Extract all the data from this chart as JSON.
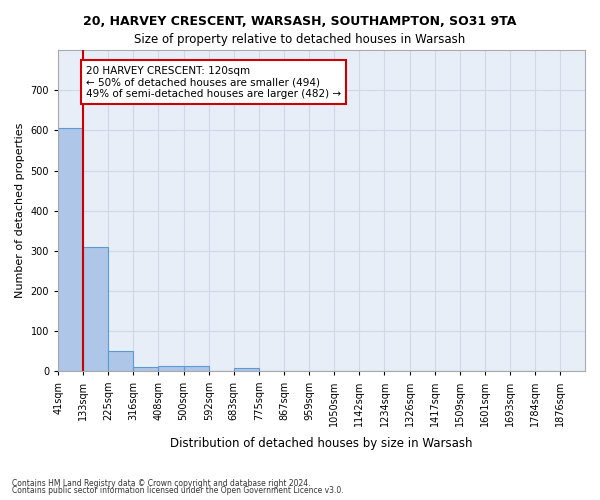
{
  "title1": "20, HARVEY CRESCENT, WARSASH, SOUTHAMPTON, SO31 9TA",
  "title2": "Size of property relative to detached houses in Warsash",
  "xlabel": "Distribution of detached houses by size in Warsash",
  "ylabel": "Number of detached properties",
  "bin_labels": [
    "41sqm",
    "133sqm",
    "225sqm",
    "316sqm",
    "408sqm",
    "500sqm",
    "592sqm",
    "683sqm",
    "775sqm",
    "867sqm",
    "959sqm",
    "1050sqm",
    "1142sqm",
    "1234sqm",
    "1326sqm",
    "1417sqm",
    "1509sqm",
    "1601sqm",
    "1693sqm",
    "1784sqm",
    "1876sqm"
  ],
  "bin_edges": [
    41,
    133,
    225,
    316,
    408,
    500,
    592,
    683,
    775,
    867,
    959,
    1050,
    1142,
    1234,
    1326,
    1417,
    1509,
    1601,
    1693,
    1784,
    1876
  ],
  "bar_heights": [
    607,
    310,
    50,
    12,
    13,
    13,
    0,
    8,
    0,
    0,
    0,
    0,
    0,
    0,
    0,
    0,
    0,
    0,
    0,
    0
  ],
  "bar_color": "#aec6e8",
  "bar_edge_color": "#5b9bd5",
  "property_size": 120,
  "property_bin_index": 0,
  "annotation_text": "20 HARVEY CRESCENT: 120sqm\n← 50% of detached houses are smaller (494)\n49% of semi-detached houses are larger (482) →",
  "annotation_box_color": "#ffffff",
  "annotation_box_edge_color": "#cc0000",
  "red_line_color": "#cc0000",
  "ylim": [
    0,
    800
  ],
  "yticks": [
    0,
    100,
    200,
    300,
    400,
    500,
    600,
    700,
    800
  ],
  "grid_color": "#d0d8e8",
  "background_color": "#e8eef8",
  "footnote1": "Contains HM Land Registry data © Crown copyright and database right 2024.",
  "footnote2": "Contains public sector information licensed under the Open Government Licence v3.0."
}
